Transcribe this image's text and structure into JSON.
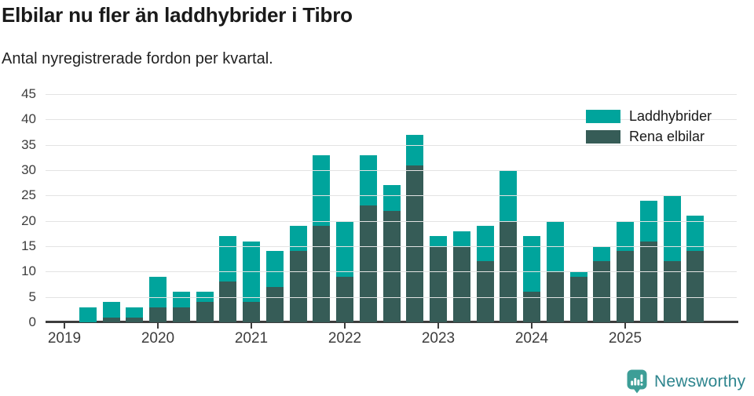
{
  "header": {
    "title": "Elbilar nu fler än laddhybrider i Tibro",
    "subtitle": "Antal nyregistrerade fordon per kvartal."
  },
  "chart_data": {
    "type": "bar",
    "stacked": true,
    "title": "Elbilar nu fler än laddhybrider i Tibro",
    "subtitle": "Antal nyregistrerade fordon per kvartal.",
    "xlabel": "",
    "ylabel": "",
    "x": [
      "2019 Q1",
      "2019 Q2",
      "2019 Q3",
      "2019 Q4",
      "2020 Q1",
      "2020 Q2",
      "2020 Q3",
      "2020 Q4",
      "2021 Q1",
      "2021 Q2",
      "2021 Q3",
      "2021 Q4",
      "2022 Q1",
      "2022 Q2",
      "2022 Q3",
      "2022 Q4",
      "2023 Q1",
      "2023 Q2",
      "2023 Q3",
      "2023 Q4",
      "2024 Q1",
      "2024 Q2",
      "2024 Q3",
      "2024 Q4",
      "2025 Q1",
      "2025 Q2",
      "2025 Q3",
      "2025 Q4"
    ],
    "series": [
      {
        "name": "Laddhybrider",
        "color": "#00a49c",
        "values": [
          0,
          3,
          3,
          2,
          6,
          3,
          2,
          9,
          12,
          7,
          5,
          14,
          11,
          10,
          5,
          6,
          2,
          3,
          7,
          10,
          11,
          10,
          1,
          3,
          6,
          8,
          13,
          7
        ]
      },
      {
        "name": "Rena elbilar",
        "color": "#365c57",
        "values": [
          0,
          0,
          1,
          1,
          3,
          3,
          4,
          8,
          4,
          7,
          14,
          19,
          9,
          23,
          22,
          31,
          15,
          15,
          12,
          20,
          6,
          10,
          9,
          12,
          14,
          16,
          12,
          14
        ]
      }
    ],
    "stack_order_bottom_to_top": [
      "Rena elbilar",
      "Laddhybrider"
    ],
    "totals": [
      0,
      3,
      4,
      3,
      9,
      6,
      6,
      17,
      16,
      14,
      19,
      33,
      20,
      33,
      27,
      37,
      17,
      18,
      19,
      30,
      17,
      20,
      10,
      15,
      20,
      24,
      25,
      21
    ],
    "ylim": [
      0,
      45
    ],
    "ytick_step": 5,
    "ytick_labels": [
      "0",
      "5",
      "10",
      "15",
      "20",
      "25",
      "30",
      "35",
      "40",
      "45"
    ],
    "x_tick_labels": [
      "2019",
      "2020",
      "2021",
      "2022",
      "2023",
      "2024",
      "2025"
    ],
    "grid": "horizontal",
    "legend_position": "top-right"
  },
  "footer": {
    "brand": "Newsworthy",
    "brand_color": "#2e858e",
    "icon_color": "#3d9e97"
  }
}
